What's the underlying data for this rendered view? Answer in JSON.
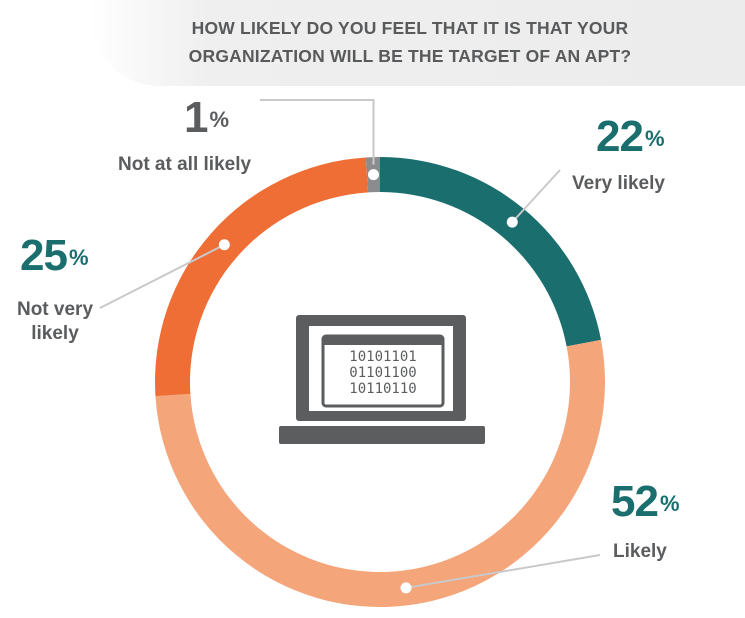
{
  "title": {
    "line1": "HOW LIKELY DO YOU FEEL THAT IT IS THAT YOUR",
    "line2": "ORGANIZATION WILL BE THE TARGET OF AN APT?"
  },
  "laptop_screen": {
    "line1": "10101101",
    "line2": "01101100",
    "line3": "10110110"
  },
  "chart_data": {
    "type": "pie",
    "title": "HOW LIKELY DO YOU FEEL THAT IT IS THAT YOUR ORGANIZATION WILL BE THE TARGET OF AN APT?",
    "slices": [
      {
        "label": "Very likely",
        "value": 22,
        "pct": "22",
        "color": "#1a6e6e"
      },
      {
        "label": "Likely",
        "value": 52,
        "pct": "52",
        "color": "#f5a57a"
      },
      {
        "label": "Not very likely",
        "value": 25,
        "pct": "25",
        "color": "#ef6e36"
      },
      {
        "label": "Not at all likely",
        "value": 1,
        "pct": "1",
        "color": "#8a8c8e"
      }
    ],
    "unit": "%",
    "donut": true,
    "start": "top, clockwise"
  }
}
